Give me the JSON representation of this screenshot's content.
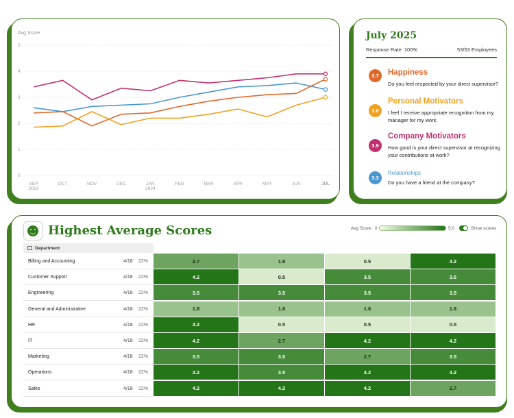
{
  "chart_data": {
    "type": "line",
    "ylabel": "Avg Score",
    "ylim": [
      0,
      5
    ],
    "yticks": [
      "0",
      "1",
      "2",
      "3",
      "4",
      "5"
    ],
    "categories": [
      "SEP 2023",
      "OCT",
      "NOV",
      "DEC",
      "JAN 2024",
      "FEB",
      "MAR",
      "APR",
      "MAY",
      "JUN",
      "JUL"
    ],
    "tick_labels": [
      {
        "line1": "SEP",
        "line2": "2023"
      },
      {
        "line1": "OCT",
        "line2": ""
      },
      {
        "line1": "NOV",
        "line2": ""
      },
      {
        "line1": "DEC",
        "line2": ""
      },
      {
        "line1": "JAN",
        "line2": "2024"
      },
      {
        "line1": "FEB",
        "line2": ""
      },
      {
        "line1": "MAR",
        "line2": ""
      },
      {
        "line1": "APR",
        "line2": ""
      },
      {
        "line1": "MAY",
        "line2": ""
      },
      {
        "line1": "JUN",
        "line2": ""
      },
      {
        "line1": "JUL",
        "line2": ""
      }
    ],
    "highlight_category": "JUL",
    "grid": true,
    "series": [
      {
        "key": "company",
        "color": "#c2306f",
        "values": [
          3.4,
          3.65,
          2.9,
          3.35,
          3.25,
          3.65,
          3.55,
          3.65,
          3.75,
          3.9,
          3.9
        ]
      },
      {
        "key": "relationships",
        "color": "#4a97d0",
        "values": [
          2.6,
          2.45,
          2.65,
          2.7,
          2.75,
          3.0,
          3.2,
          3.4,
          3.45,
          3.55,
          3.3
        ]
      },
      {
        "key": "happiness",
        "color": "#e0692a",
        "values": [
          2.4,
          2.45,
          1.9,
          2.35,
          2.4,
          2.65,
          2.85,
          3.0,
          3.1,
          3.15,
          3.7
        ]
      },
      {
        "key": "personal",
        "color": "#f1a120",
        "values": [
          1.85,
          1.9,
          2.45,
          1.95,
          2.2,
          2.2,
          2.35,
          2.55,
          2.25,
          2.7,
          3.0
        ]
      }
    ]
  },
  "info": {
    "title": "July 2025",
    "response_rate": "Response Rate: 100%",
    "employees": "53/53 Employees",
    "metrics": [
      {
        "score": "3.7",
        "title": "Happiness",
        "question": "Do you feel respected by your direct supervisor?",
        "color": "#e0692a"
      },
      {
        "score": "3.0",
        "title": "Personal Motivators",
        "question": "I feel I receive appropriate recognition from my manager for my work.",
        "color": "#f1a120"
      },
      {
        "score": "3.9",
        "title": "Company Motivators",
        "question": "How good is your direct supervisor at recognizing your contributions at work?",
        "color": "#c2306f"
      },
      {
        "score": "3.3",
        "title": "Relationships",
        "question": "Do you have a friend at the company?",
        "color": "#4a97d0"
      }
    ]
  },
  "table": {
    "title": "Highest Average Scores",
    "legend_label": "Avg Score",
    "legend_min": "0",
    "legend_max": "5.0",
    "toggle_label": "Show scores",
    "column_header": "Department",
    "rows": [
      {
        "name": "Billing and Accounting",
        "frac": "4/18",
        "pct": "22%",
        "scores": [
          "2.7",
          "1.8",
          "0.5",
          "4.2"
        ]
      },
      {
        "name": "Customer Support",
        "frac": "4/18",
        "pct": "22%",
        "scores": [
          "4.2",
          "0.5",
          "3.5",
          "3.5"
        ]
      },
      {
        "name": "Engineering",
        "frac": "4/18",
        "pct": "22%",
        "scores": [
          "3.5",
          "3.5",
          "3.5",
          "3.5"
        ]
      },
      {
        "name": "General and Administrative",
        "frac": "4/18",
        "pct": "22%",
        "scores": [
          "1.8",
          "1.8",
          "1.8",
          "1.8"
        ]
      },
      {
        "name": "HR",
        "frac": "4/18",
        "pct": "22%",
        "scores": [
          "4.2",
          "0.5",
          "0.5",
          "0.5"
        ]
      },
      {
        "name": "IT",
        "frac": "4/18",
        "pct": "22%",
        "scores": [
          "4.2",
          "2.7",
          "4.2",
          "4.2"
        ]
      },
      {
        "name": "Marketing",
        "frac": "4/18",
        "pct": "22%",
        "scores": [
          "3.5",
          "3.5",
          "2.7",
          "3.5"
        ]
      },
      {
        "name": "Operations",
        "frac": "4/18",
        "pct": "22%",
        "scores": [
          "4.2",
          "3.5",
          "4.2",
          "4.2"
        ]
      },
      {
        "name": "Sales",
        "frac": "4/18",
        "pct": "22%",
        "scores": [
          "4.2",
          "4.2",
          "4.2",
          "2.7"
        ]
      }
    ]
  }
}
